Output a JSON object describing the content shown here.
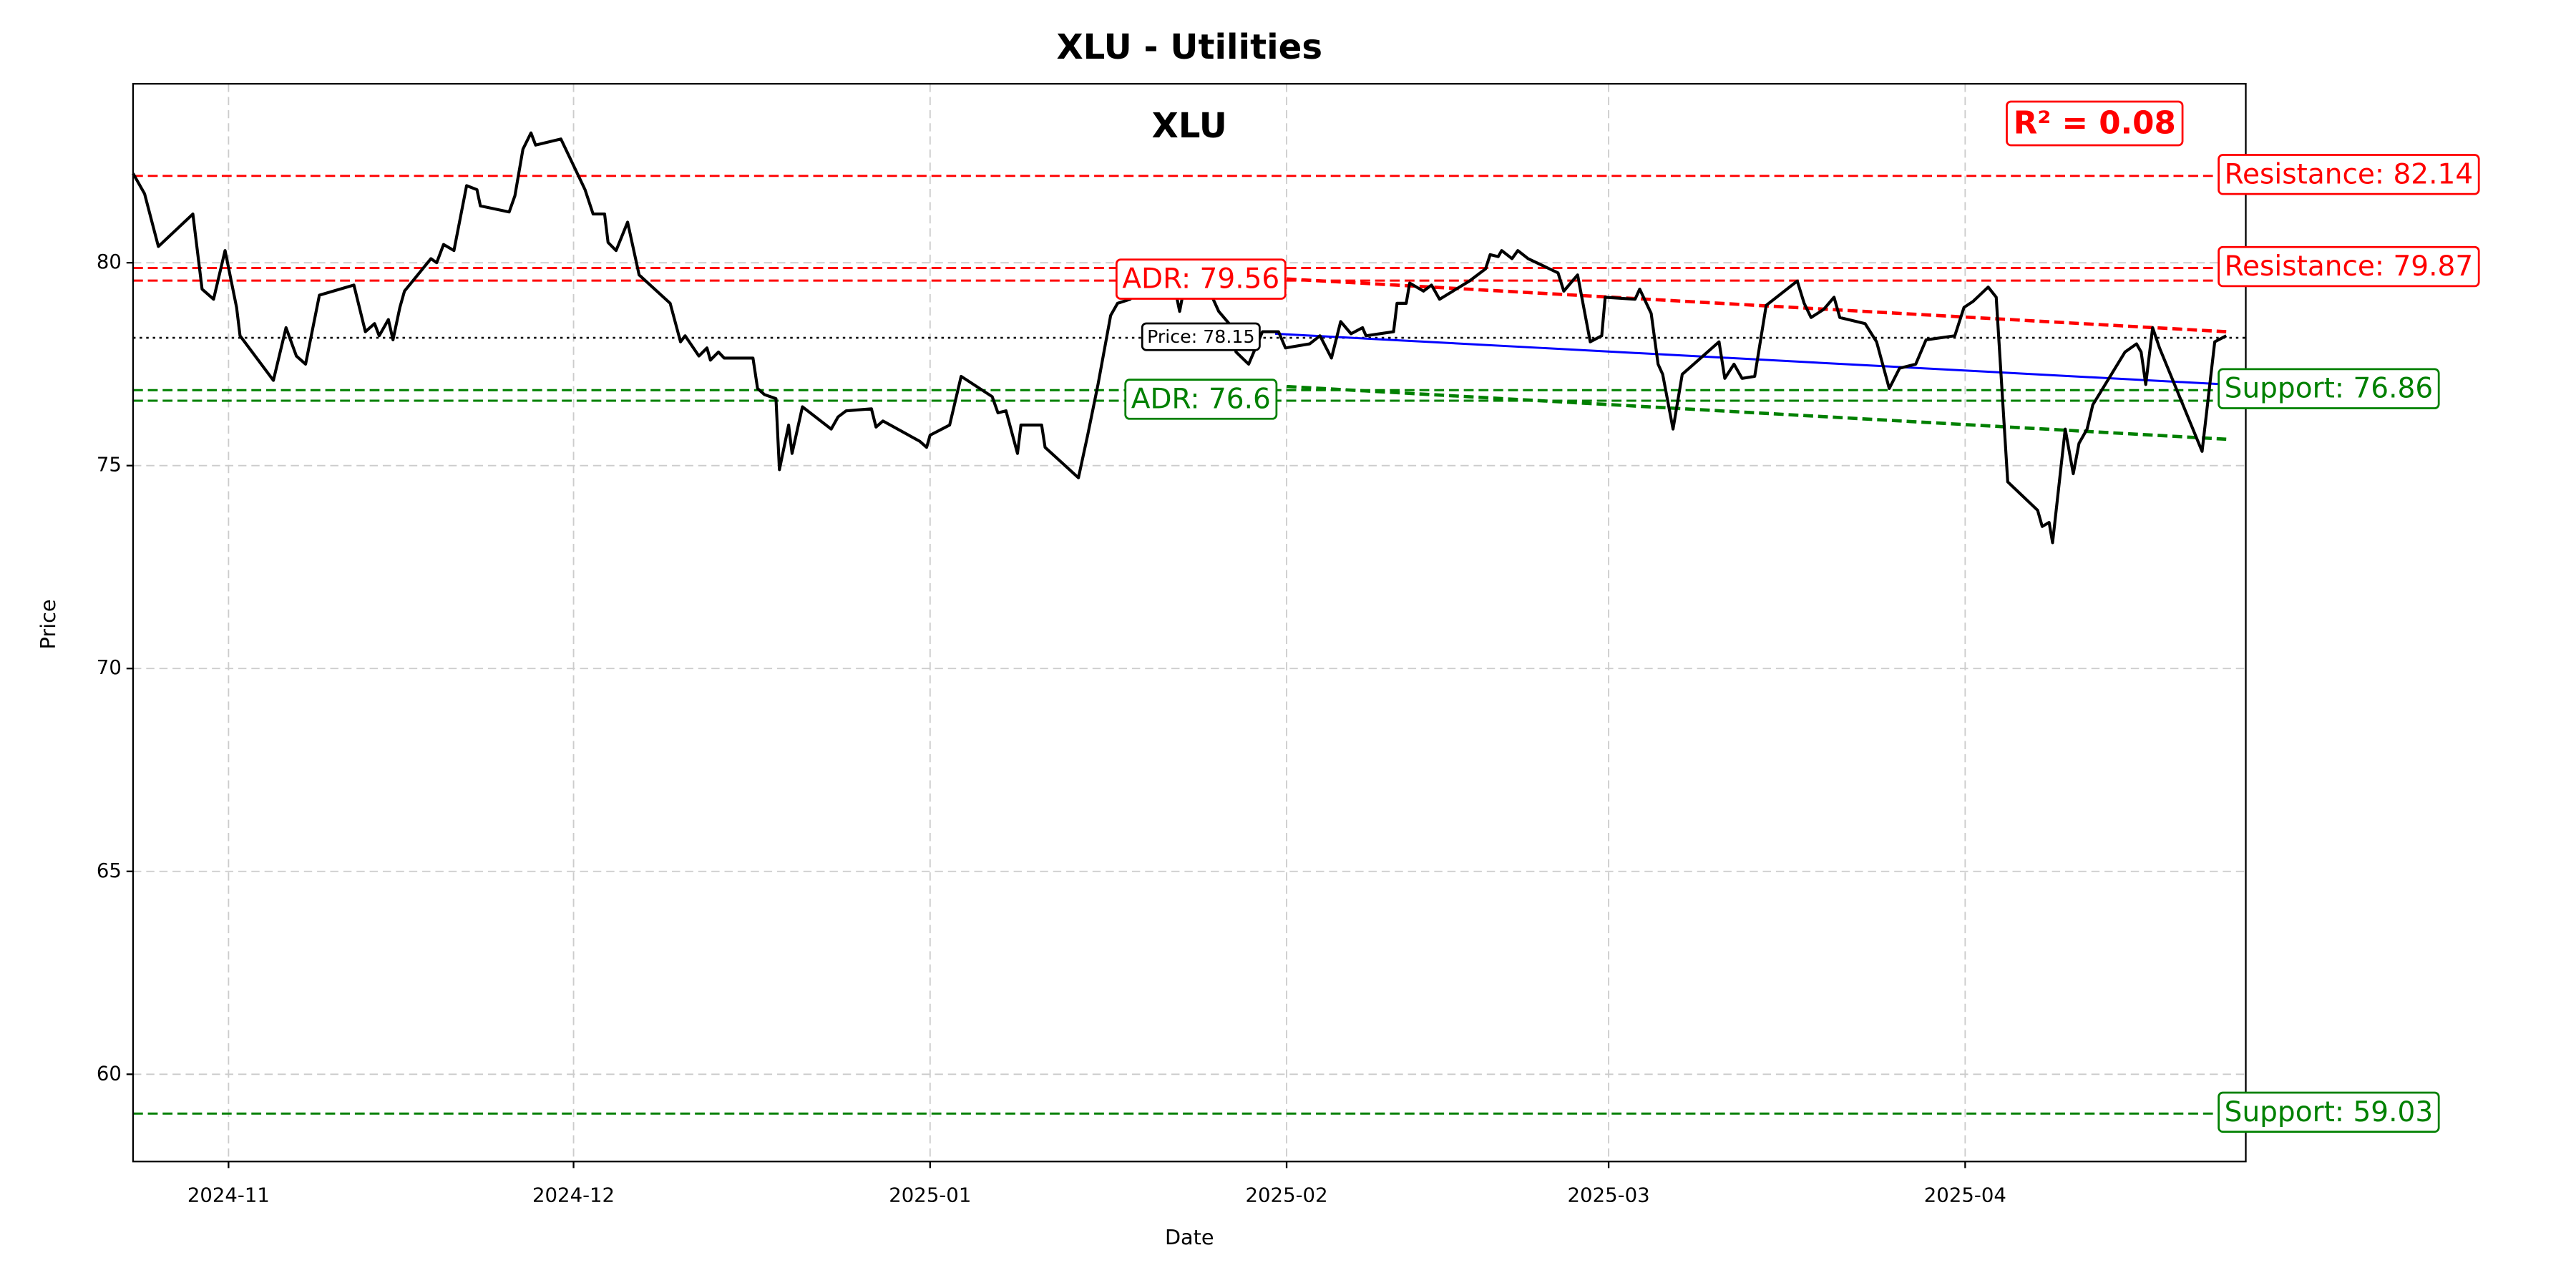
{
  "chart_data": {
    "type": "line",
    "title": "XLU - Utilities",
    "subtitle": "XLU",
    "annotation": "R² = 0.08",
    "x_label": "Date",
    "y_label": "Price",
    "grid": true,
    "xlim": [
      -8.3,
      175.4
    ],
    "ylim": [
      57.85,
      84.41
    ],
    "xticks": [
      {
        "value": 0,
        "label": "2024-11"
      },
      {
        "value": 30,
        "label": "2024-12"
      },
      {
        "value": 61,
        "label": "2025-01"
      },
      {
        "value": 92,
        "label": "2025-02"
      },
      {
        "value": 120,
        "label": "2025-03"
      },
      {
        "value": 151,
        "label": "2025-04"
      }
    ],
    "yticks": [
      60,
      65,
      70,
      75,
      80
    ],
    "x": [
      -8.3,
      -7.3,
      -6.1,
      -3.1,
      -2.3,
      -1.3,
      -0.3,
      0.7,
      1,
      3.9,
      5,
      5.9,
      6.7,
      7.9,
      10.9,
      11.9,
      12.7,
      13.1,
      13.9,
      14.3,
      14.9,
      15.3,
      17.6,
      18.1,
      18.7,
      19.6,
      20.7,
      21.6,
      21.9,
      24.4,
      24.9,
      25.6,
      26.3,
      26.7,
      28.9,
      31,
      31.7,
      32.7,
      33,
      33.7,
      34.7,
      35.7,
      38.4,
      39.3,
      39.7,
      40.9,
      41.6,
      41.9,
      42.6,
      43.1,
      45.6,
      46,
      46.6,
      47.6,
      47.9,
      48.7,
      49,
      49.9,
      52.4,
      53,
      53.7,
      55.9,
      56.3,
      56.9,
      60.1,
      60.7,
      61,
      62.7,
      63.7,
      66.4,
      66.9,
      67.6,
      68.6,
      68.9,
      70.7,
      71,
      73.9,
      74.7,
      75.6,
      76.7,
      77.3,
      78.4,
      80.1,
      81.9,
      82.7,
      83.3,
      84,
      85.3,
      86.1,
      87,
      87.6,
      88.7,
      89.9,
      91.3,
      91.9,
      94,
      94.9,
      95.9,
      96.7,
      97.6,
      98.6,
      98.9,
      101.3,
      101.6,
      102.4,
      102.7,
      103.9,
      104.6,
      105.3,
      107.9,
      109.3,
      109.7,
      110.4,
      110.7,
      111.6,
      112.1,
      113,
      115.6,
      116.1,
      116.7,
      117.3,
      118.4,
      119.4,
      119.7,
      122.3,
      122.7,
      123.7,
      124.3,
      124.7,
      125.6,
      126.4,
      129.6,
      130.1,
      130.9,
      131.6,
      132.7,
      133.7,
      136.4,
      137,
      137.6,
      138.7,
      139.6,
      140.1,
      142.3,
      143.3,
      144.4,
      145.3,
      146.7,
      147.6,
      150.1,
      150.9,
      151.7,
      153,
      153.7,
      154.7,
      157.3,
      157.7,
      158.3,
      158.6,
      159.7,
      160.4,
      160.9,
      161.6,
      162.1,
      164.9,
      165.9,
      166.3,
      166.7,
      167.3,
      167.9,
      171.6,
      172.7,
      173.7
    ],
    "series": [
      {
        "color": "#000000",
        "values": [
          82.2,
          81.7,
          80.4,
          81.2,
          79.35,
          79.1,
          80.3,
          78.9,
          78.2,
          77.1,
          78.4,
          77.7,
          77.5,
          79.2,
          79.45,
          78.3,
          78.5,
          78.2,
          78.6,
          78.1,
          78.9,
          79.3,
          80.1,
          80.0,
          80.45,
          80.3,
          81.9,
          81.8,
          81.4,
          81.25,
          81.65,
          82.8,
          83.2,
          82.9,
          83.05,
          81.8,
          81.2,
          81.2,
          80.5,
          80.3,
          81.0,
          79.7,
          79.0,
          78.05,
          78.2,
          77.7,
          77.9,
          77.6,
          77.8,
          77.65,
          77.65,
          76.9,
          76.75,
          76.65,
          74.9,
          76.0,
          75.3,
          76.45,
          75.9,
          76.2,
          76.35,
          76.4,
          75.95,
          76.1,
          75.6,
          75.45,
          75.75,
          76.0,
          77.2,
          76.7,
          76.3,
          76.35,
          75.3,
          76.0,
          76.0,
          75.45,
          74.7,
          75.75,
          77.0,
          78.7,
          79.0,
          79.1,
          79.9,
          79.9,
          78.8,
          79.7,
          79.6,
          79.3,
          78.8,
          78.5,
          77.8,
          77.5,
          78.3,
          78.3,
          77.9,
          78.0,
          78.2,
          77.65,
          78.55,
          78.25,
          78.4,
          78.2,
          78.3,
          79.0,
          79.0,
          79.5,
          79.3,
          79.45,
          79.1,
          79.55,
          79.85,
          80.2,
          80.15,
          80.3,
          80.1,
          80.3,
          80.1,
          79.75,
          79.3,
          79.5,
          79.7,
          78.05,
          78.2,
          79.15,
          79.1,
          79.35,
          78.75,
          77.5,
          77.25,
          75.9,
          77.25,
          78.05,
          77.15,
          77.5,
          77.15,
          77.2,
          78.95,
          79.55,
          79.0,
          78.65,
          78.85,
          79.15,
          78.65,
          78.5,
          78.05,
          76.9,
          77.4,
          77.5,
          78.1,
          78.2,
          78.9,
          79.05,
          79.4,
          79.15,
          74.6,
          73.9,
          73.5,
          73.6,
          73.1,
          75.9,
          74.8,
          75.55,
          75.9,
          76.5,
          77.8,
          78.0,
          77.8,
          77.0,
          78.4,
          77.9,
          75.35,
          78.05,
          78.2
        ]
      }
    ],
    "levels": [
      {
        "value": 82.14,
        "label": "Resistance: 82.14",
        "color": "#ff0000",
        "style": "dashed",
        "label_at": "right"
      },
      {
        "value": 79.87,
        "label": "Resistance: 79.87",
        "color": "#ff0000",
        "style": "dashed",
        "label_at": "right"
      },
      {
        "value": 79.56,
        "label": "ADR: 79.56",
        "color": "#ff0000",
        "style": "dashed",
        "label_at": "middle"
      },
      {
        "value": 78.15,
        "label": "Price: 78.15",
        "color": "#000000",
        "style": "dotted",
        "label_at": "middle"
      },
      {
        "value": 76.86,
        "label": "Support: 76.86",
        "color": "#008000",
        "style": "dashed",
        "label_at": "right"
      },
      {
        "value": 76.6,
        "label": "ADR: 76.6",
        "color": "#008000",
        "style": "dashed",
        "label_at": "middle"
      },
      {
        "value": 59.03,
        "label": "Support: 59.03",
        "color": "#008000",
        "style": "dashed",
        "label_at": "right"
      }
    ],
    "trend_lines": [
      {
        "x": [
          91,
          173.7
        ],
        "values": [
          78.25,
          77.0
        ],
        "color": "#0000ff",
        "style": "solid"
      },
      {
        "x": [
          92,
          173.7
        ],
        "values": [
          79.6,
          78.3
        ],
        "color": "#ff0000",
        "style": "dashed"
      },
      {
        "x": [
          92,
          173.7
        ],
        "values": [
          76.95,
          75.65
        ],
        "color": "#008000",
        "style": "dashed"
      }
    ]
  }
}
